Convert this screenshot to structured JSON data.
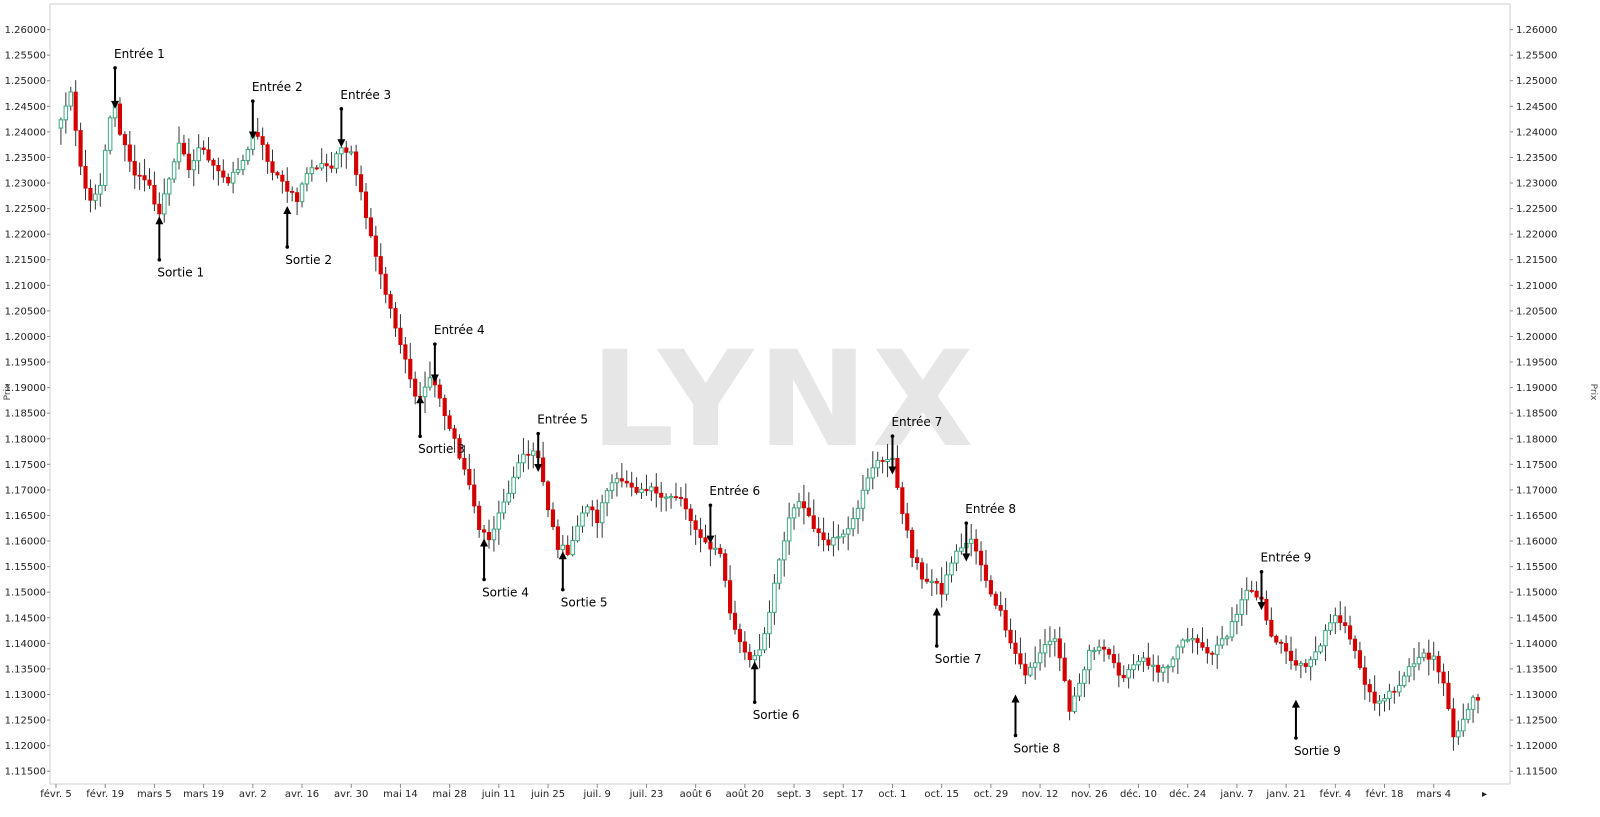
{
  "watermark": "LYNX",
  "chart_data": {
    "type": "candlestick",
    "title": "",
    "ylabel_left": "Prix",
    "ylabel_right": "Prix",
    "ylim": [
      1.1125,
      1.265
    ],
    "grid": false,
    "legend": "none",
    "colors": {
      "bull": "#3aa87d",
      "bear": "#d40000",
      "wick": "#333333",
      "frame": "#cfcfcf"
    },
    "y_ticks": [
      "1.26000",
      "1.25500",
      "1.25000",
      "1.24500",
      "1.24000",
      "1.23500",
      "1.23000",
      "1.22500",
      "1.22000",
      "1.21500",
      "1.21000",
      "1.20500",
      "1.20000",
      "1.19500",
      "1.19000",
      "1.18500",
      "1.18000",
      "1.17500",
      "1.17000",
      "1.16500",
      "1.16000",
      "1.15500",
      "1.15000",
      "1.14500",
      "1.14000",
      "1.13500",
      "1.13000",
      "1.12500",
      "1.12000",
      "1.11500"
    ],
    "x_ticks": [
      {
        "label": "févr. 5",
        "i": 0
      },
      {
        "label": "févr. 19",
        "i": 10
      },
      {
        "label": "mars 5",
        "i": 20
      },
      {
        "label": "mars 19",
        "i": 30
      },
      {
        "label": "avr. 2",
        "i": 40
      },
      {
        "label": "avr. 16",
        "i": 50
      },
      {
        "label": "avr. 30",
        "i": 60
      },
      {
        "label": "mai 14",
        "i": 70
      },
      {
        "label": "mai 28",
        "i": 80
      },
      {
        "label": "juin 11",
        "i": 90
      },
      {
        "label": "juin 25",
        "i": 100
      },
      {
        "label": "juil. 9",
        "i": 110
      },
      {
        "label": "juil. 23",
        "i": 120
      },
      {
        "label": "août 6",
        "i": 130
      },
      {
        "label": "août 20",
        "i": 140
      },
      {
        "label": "sept. 3",
        "i": 150
      },
      {
        "label": "sept. 17",
        "i": 160
      },
      {
        "label": "oct. 1",
        "i": 170
      },
      {
        "label": "oct. 15",
        "i": 180
      },
      {
        "label": "oct. 29",
        "i": 190
      },
      {
        "label": "nov. 12",
        "i": 200
      },
      {
        "label": "nov. 26",
        "i": 210
      },
      {
        "label": "déc. 10",
        "i": 220
      },
      {
        "label": "déc. 24",
        "i": 230
      },
      {
        "label": "janv. 7",
        "i": 240
      },
      {
        "label": "janv. 21",
        "i": 250
      },
      {
        "label": "févr. 4",
        "i": 260
      },
      {
        "label": "févr. 18",
        "i": 270
      },
      {
        "label": "mars 4",
        "i": 280
      }
    ],
    "path": [
      [
        0,
        1.2405
      ],
      [
        3,
        1.247
      ],
      [
        5,
        1.233
      ],
      [
        7,
        1.226
      ],
      [
        9,
        1.229
      ],
      [
        11,
        1.243
      ],
      [
        12,
        1.245
      ],
      [
        13,
        1.24
      ],
      [
        16,
        1.232
      ],
      [
        19,
        1.229
      ],
      [
        21,
        1.224
      ],
      [
        23,
        1.231
      ],
      [
        25,
        1.238
      ],
      [
        27,
        1.232
      ],
      [
        29,
        1.237
      ],
      [
        32,
        1.234
      ],
      [
        35,
        1.23
      ],
      [
        38,
        1.234
      ],
      [
        40,
        1.24
      ],
      [
        42,
        1.237
      ],
      [
        44,
        1.232
      ],
      [
        47,
        1.229
      ],
      [
        49,
        1.227
      ],
      [
        51,
        1.232
      ],
      [
        54,
        1.234
      ],
      [
        56,
        1.233
      ],
      [
        58,
        1.237
      ],
      [
        60,
        1.2365
      ],
      [
        62,
        1.228
      ],
      [
        65,
        1.216
      ],
      [
        68,
        1.205
      ],
      [
        71,
        1.195
      ],
      [
        73,
        1.188
      ],
      [
        75,
        1.19
      ],
      [
        76,
        1.192
      ],
      [
        77,
        1.1905
      ],
      [
        80,
        1.182
      ],
      [
        83,
        1.174
      ],
      [
        86,
        1.163
      ],
      [
        88,
        1.16
      ],
      [
        90,
        1.165
      ],
      [
        93,
        1.172
      ],
      [
        95,
        1.177
      ],
      [
        97,
        1.1775
      ],
      [
        98,
        1.176
      ],
      [
        100,
        1.166
      ],
      [
        102,
        1.159
      ],
      [
        104,
        1.158
      ],
      [
        106,
        1.163
      ],
      [
        108,
        1.167
      ],
      [
        110,
        1.164
      ],
      [
        112,
        1.17
      ],
      [
        114,
        1.173
      ],
      [
        116,
        1.171
      ],
      [
        118,
        1.169
      ],
      [
        121,
        1.17
      ],
      [
        124,
        1.169
      ],
      [
        127,
        1.168
      ],
      [
        129,
        1.164
      ],
      [
        131,
        1.16
      ],
      [
        133,
        1.159
      ],
      [
        135,
        1.158
      ],
      [
        137,
        1.146
      ],
      [
        139,
        1.14
      ],
      [
        141,
        1.137
      ],
      [
        143,
        1.139
      ],
      [
        145,
        1.146
      ],
      [
        147,
        1.156
      ],
      [
        149,
        1.164
      ],
      [
        151,
        1.168
      ],
      [
        153,
        1.165
      ],
      [
        155,
        1.161
      ],
      [
        157,
        1.16
      ],
      [
        159,
        1.161
      ],
      [
        161,
        1.163
      ],
      [
        163,
        1.167
      ],
      [
        165,
        1.172
      ],
      [
        167,
        1.176
      ],
      [
        169,
        1.176
      ],
      [
        170,
        1.1755
      ],
      [
        172,
        1.166
      ],
      [
        174,
        1.157
      ],
      [
        176,
        1.153
      ],
      [
        178,
        1.152
      ],
      [
        180,
        1.15
      ],
      [
        182,
        1.156
      ],
      [
        184,
        1.159
      ],
      [
        186,
        1.16
      ],
      [
        187,
        1.158
      ],
      [
        189,
        1.152
      ],
      [
        192,
        1.146
      ],
      [
        195,
        1.138
      ],
      [
        197,
        1.134
      ],
      [
        199,
        1.136
      ],
      [
        201,
        1.14
      ],
      [
        203,
        1.141
      ],
      [
        205,
        1.133
      ],
      [
        206,
        1.126
      ],
      [
        208,
        1.132
      ],
      [
        210,
        1.138
      ],
      [
        212,
        1.14
      ],
      [
        214,
        1.138
      ],
      [
        216,
        1.133
      ],
      [
        218,
        1.135
      ],
      [
        220,
        1.137
      ],
      [
        222,
        1.136
      ],
      [
        224,
        1.134
      ],
      [
        226,
        1.135
      ],
      [
        228,
        1.139
      ],
      [
        230,
        1.141
      ],
      [
        232,
        1.14
      ],
      [
        234,
        1.138
      ],
      [
        236,
        1.139
      ],
      [
        238,
        1.142
      ],
      [
        240,
        1.146
      ],
      [
        242,
        1.15
      ],
      [
        244,
        1.149
      ],
      [
        245,
        1.148
      ],
      [
        247,
        1.142
      ],
      [
        250,
        1.138
      ],
      [
        252,
        1.136
      ],
      [
        254,
        1.135
      ],
      [
        256,
        1.138
      ],
      [
        258,
        1.142
      ],
      [
        260,
        1.145
      ],
      [
        262,
        1.144
      ],
      [
        264,
        1.139
      ],
      [
        266,
        1.132
      ],
      [
        268,
        1.129
      ],
      [
        270,
        1.129
      ],
      [
        272,
        1.131
      ],
      [
        274,
        1.134
      ],
      [
        276,
        1.136
      ],
      [
        278,
        1.138
      ],
      [
        280,
        1.137
      ],
      [
        282,
        1.132
      ],
      [
        284,
        1.122
      ],
      [
        286,
        1.125
      ],
      [
        288,
        1.129
      ]
    ],
    "annotations": [
      {
        "label": "Entrée 1",
        "i": 12,
        "direction": "down",
        "y_start": 1.2525,
        "y_tip": 1.2445
      },
      {
        "label": "Sortie 1",
        "i": 21,
        "direction": "up",
        "y_start": 1.215,
        "y_tip": 1.2235
      },
      {
        "label": "Entrée 2",
        "i": 40,
        "direction": "down",
        "y_start": 1.246,
        "y_tip": 1.2385
      },
      {
        "label": "Sortie 2",
        "i": 47,
        "direction": "up",
        "y_start": 1.2175,
        "y_tip": 1.2255
      },
      {
        "label": "Entrée 3",
        "i": 58,
        "direction": "down",
        "y_start": 1.2445,
        "y_tip": 1.237
      },
      {
        "label": "Entrée 4",
        "i": 77,
        "direction": "down",
        "y_start": 1.1985,
        "y_tip": 1.191
      },
      {
        "label": "Sortie 3",
        "i": 74,
        "direction": "up",
        "y_start": 1.1805,
        "y_tip": 1.1885
      },
      {
        "label": "Sortie 4",
        "i": 87,
        "direction": "up",
        "y_start": 1.1525,
        "y_tip": 1.1605
      },
      {
        "label": "Entrée 5",
        "i": 98,
        "direction": "down",
        "y_start": 1.181,
        "y_tip": 1.1735
      },
      {
        "label": "Sortie 5",
        "i": 103,
        "direction": "up",
        "y_start": 1.1505,
        "y_tip": 1.158
      },
      {
        "label": "Entrée 6",
        "i": 133,
        "direction": "down",
        "y_start": 1.167,
        "y_tip": 1.1595
      },
      {
        "label": "Sortie 6",
        "i": 142,
        "direction": "up",
        "y_start": 1.1285,
        "y_tip": 1.1365
      },
      {
        "label": "Entrée 7",
        "i": 170,
        "direction": "down",
        "y_start": 1.1805,
        "y_tip": 1.173
      },
      {
        "label": "Sortie 7",
        "i": 179,
        "direction": "up",
        "y_start": 1.1395,
        "y_tip": 1.147
      },
      {
        "label": "Entrée 8",
        "i": 185,
        "direction": "down",
        "y_start": 1.1635,
        "y_tip": 1.156
      },
      {
        "label": "Sortie 8",
        "i": 195,
        "direction": "up",
        "y_start": 1.122,
        "y_tip": 1.13
      },
      {
        "label": "Entrée 9",
        "i": 245,
        "direction": "down",
        "y_start": 1.154,
        "y_tip": 1.1465
      },
      {
        "label": "Sortie 9",
        "i": 252,
        "direction": "up",
        "y_start": 1.1215,
        "y_tip": 1.129
      }
    ]
  }
}
